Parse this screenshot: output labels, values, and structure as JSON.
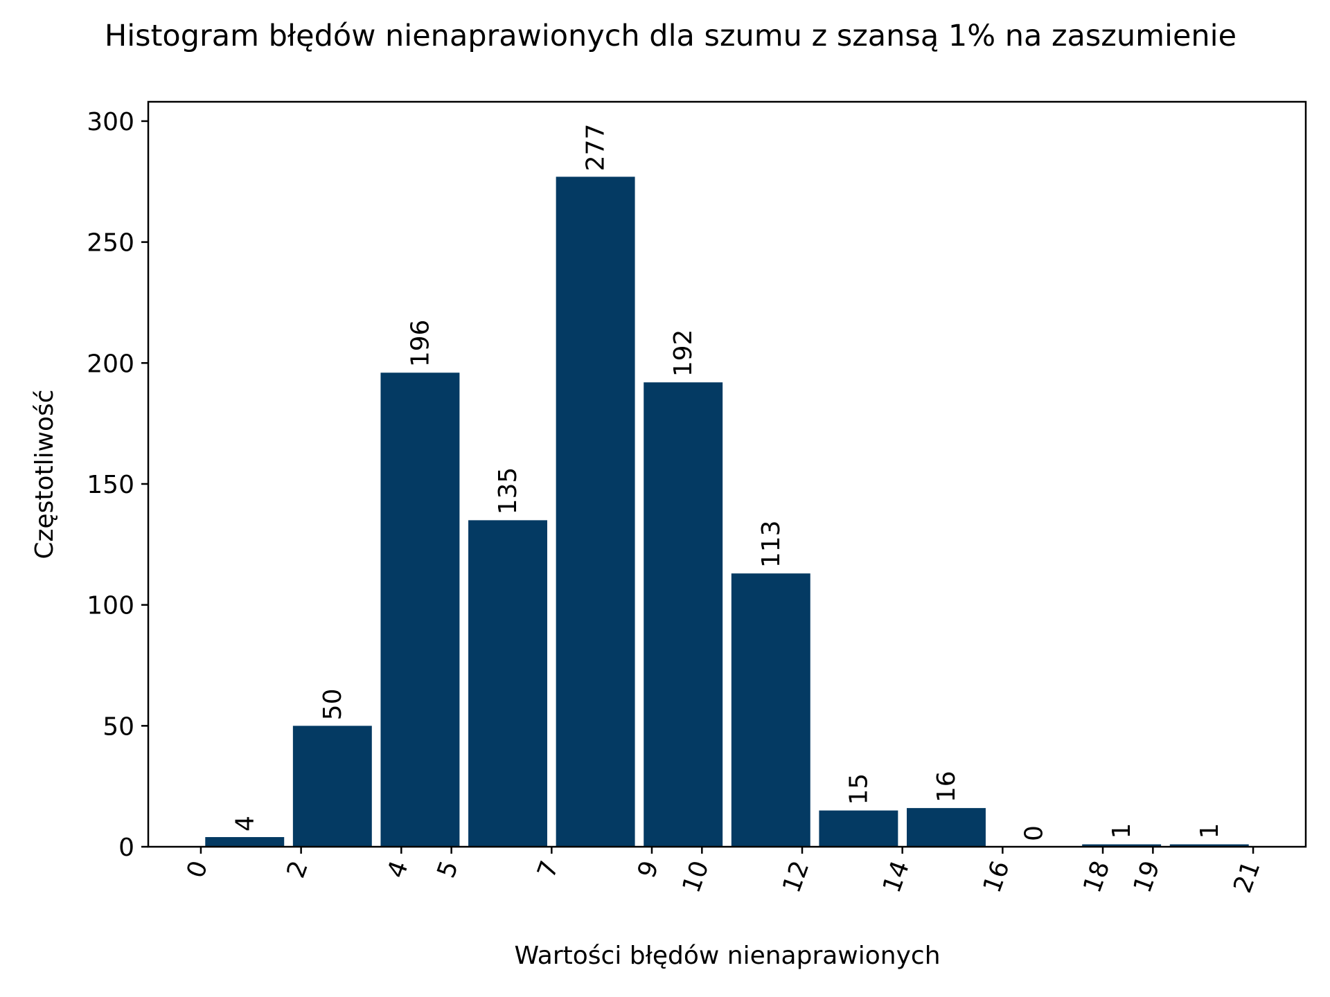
{
  "chart_data": {
    "type": "bar",
    "title": "Histogram błędów nienaprawionych dla szumu z szansą 1% na zaszumienie",
    "xlabel": "Wartości błędów nienaprawionych",
    "ylabel": "Częstotliwość",
    "bins": [
      {
        "from": 0.0,
        "to": 1.75,
        "value": 4
      },
      {
        "from": 1.75,
        "to": 3.5,
        "value": 50
      },
      {
        "from": 3.5,
        "to": 5.25,
        "value": 196
      },
      {
        "from": 5.25,
        "to": 7.0,
        "value": 135
      },
      {
        "from": 7.0,
        "to": 8.75,
        "value": 277
      },
      {
        "from": 8.75,
        "to": 10.5,
        "value": 192
      },
      {
        "from": 10.5,
        "to": 12.25,
        "value": 113
      },
      {
        "from": 12.25,
        "to": 14.0,
        "value": 15
      },
      {
        "from": 14.0,
        "to": 15.75,
        "value": 16
      },
      {
        "from": 15.75,
        "to": 17.5,
        "value": 0
      },
      {
        "from": 17.5,
        "to": 19.25,
        "value": 1
      },
      {
        "from": 19.25,
        "to": 21.0,
        "value": 1
      }
    ],
    "data_labels": [
      "4",
      "50",
      "196",
      "135",
      "277",
      "192",
      "113",
      "15",
      "16",
      "0",
      "1",
      "1"
    ],
    "xticks": [
      0,
      2,
      4,
      5,
      7,
      9,
      10,
      12,
      14,
      16,
      18,
      19,
      21
    ],
    "xtick_labels": [
      "0",
      "2",
      "4",
      "5",
      "7",
      "9",
      "10",
      "12",
      "14",
      "16",
      "18",
      "19",
      "21"
    ],
    "yticks": [
      0,
      50,
      100,
      150,
      200,
      250,
      300
    ],
    "ytick_labels": [
      "0",
      "50",
      "100",
      "150",
      "200",
      "250",
      "300"
    ],
    "xlim": [
      -1.05,
      22.05
    ],
    "ylim": [
      0,
      308
    ],
    "bar_color": "#043a63",
    "grid": false
  }
}
